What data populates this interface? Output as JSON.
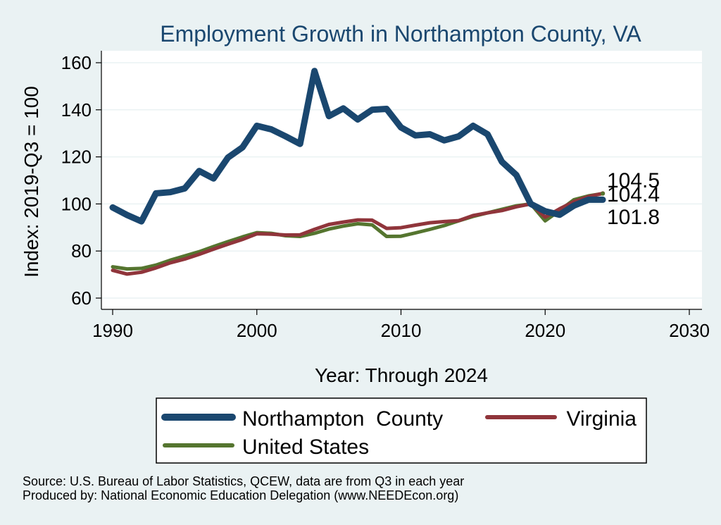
{
  "chart_data": {
    "type": "line",
    "title": "Employment Growth in Northampton County, VA",
    "xlabel": "Year: Through 2024",
    "ylabel": "Index: 2019-Q3 = 100",
    "xlim": [
      1990,
      2030
    ],
    "ylim": [
      60,
      160
    ],
    "xticks": [
      1990,
      2000,
      2010,
      2020,
      2030
    ],
    "yticks": [
      60,
      80,
      100,
      120,
      140,
      160
    ],
    "grid": true,
    "legend_position": "bottom",
    "x": [
      1990,
      1991,
      1992,
      1993,
      1994,
      1995,
      1996,
      1997,
      1998,
      1999,
      2000,
      2001,
      2002,
      2003,
      2004,
      2005,
      2006,
      2007,
      2008,
      2009,
      2010,
      2011,
      2012,
      2013,
      2014,
      2015,
      2016,
      2017,
      2018,
      2019,
      2020,
      2021,
      2022,
      2023,
      2024
    ],
    "series": [
      {
        "name": "Northampton  County",
        "color": "#1a476f",
        "values": [
          98.5,
          95.3,
          92.6,
          104.5,
          105.0,
          106.6,
          114.0,
          110.8,
          119.7,
          124.0,
          133.2,
          131.7,
          128.7,
          125.5,
          156.5,
          137.3,
          140.6,
          135.9,
          140.0,
          140.4,
          132.5,
          129.1,
          129.6,
          127.0,
          128.7,
          133.2,
          129.6,
          117.9,
          112.3,
          100.0,
          96.9,
          95.4,
          99.3,
          101.8,
          101.8
        ]
      },
      {
        "name": "Virginia",
        "color": "#90353b",
        "values": [
          71.8,
          70.2,
          71.0,
          72.8,
          75.0,
          76.6,
          78.6,
          80.8,
          82.9,
          84.9,
          87.3,
          87.2,
          86.8,
          86.9,
          89.2,
          91.3,
          92.3,
          93.2,
          93.1,
          89.6,
          89.9,
          91.0,
          92.0,
          92.5,
          92.9,
          95.1,
          96.2,
          97.2,
          98.8,
          100.0,
          94.4,
          97.9,
          101.0,
          103.1,
          104.5
        ]
      },
      {
        "name": "United States",
        "color": "#55752f",
        "values": [
          73.3,
          72.4,
          72.6,
          74.0,
          76.1,
          77.9,
          79.7,
          81.9,
          84.0,
          86.0,
          87.8,
          87.5,
          86.5,
          86.2,
          87.5,
          89.3,
          90.6,
          91.6,
          91.1,
          86.2,
          86.3,
          87.7,
          89.2,
          90.8,
          92.8,
          94.7,
          96.2,
          97.7,
          99.2,
          100.0,
          92.8,
          97.2,
          101.8,
          103.4,
          104.4
        ]
      }
    ],
    "end_labels": [
      {
        "value": 104.5,
        "text": "104.5",
        "color": "#90353b"
      },
      {
        "value": 104.4,
        "text": "104.4",
        "color": "#55752f"
      },
      {
        "value": 101.8,
        "text": "101.8",
        "color": "#1a476f"
      }
    ],
    "footnotes": [
      "Source: U.S. Bureau of Labor Statistics, QCEW, data are from Q3 in each year",
      "Produced by: National Economic Education Delegation (www.NEEDEcon.org)"
    ]
  }
}
